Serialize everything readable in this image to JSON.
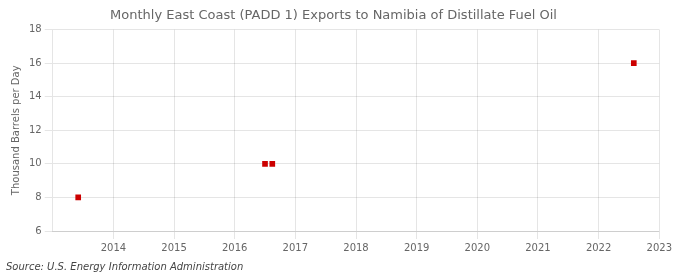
{
  "chart_data": {
    "type": "scatter",
    "title": "Monthly East Coast (PADD 1) Exports to Namibia of Distillate Fuel Oil",
    "ylabel": "Thousand Barrels per Day",
    "annotations": [
      "Source: U.S. Energy Information Administration"
    ],
    "x": [
      2013.42,
      2016.5,
      2016.62,
      2022.58
    ],
    "values": [
      8,
      10,
      10,
      16
    ],
    "color": "#cc0000",
    "marker": "square",
    "xlim": [
      2013.0,
      2023.0
    ],
    "xticks": [
      2014,
      2015,
      2016,
      2017,
      2018,
      2019,
      2020,
      2021,
      2022,
      2023
    ],
    "ylim": [
      6,
      18
    ],
    "yticks": [
      6,
      8,
      10,
      12,
      14,
      16,
      18
    ],
    "grid": true
  }
}
